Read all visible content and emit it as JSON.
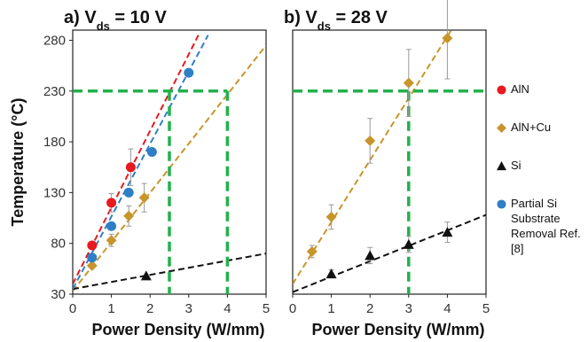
{
  "chart_data": [
    {
      "type": "scatter",
      "title_prefix": "a) V",
      "title_sub": "ds",
      "title_suffix": " = 10 V",
      "xlabel": "Power Density (W/mm)",
      "ylabel": "Temperature (°C)",
      "xlim": [
        0,
        5
      ],
      "ylim": [
        30,
        290
      ],
      "xticks": [
        0,
        1,
        2,
        3,
        4,
        5
      ],
      "yticks": [
        30,
        80,
        130,
        180,
        230,
        280
      ],
      "series": [
        {
          "name": "AlN",
          "marker": "circle",
          "color": "#e8191f",
          "x": [
            0.5,
            1.0,
            1.5
          ],
          "y": [
            78,
            120,
            155
          ],
          "err": [
            0,
            9,
            18
          ],
          "fit": {
            "x": [
              0,
              3.25
            ],
            "y": [
              40,
              285
            ]
          }
        },
        {
          "name": "AlN+Cu",
          "marker": "diamond",
          "color": "#c8952b",
          "x": [
            0.5,
            1.0,
            1.45,
            1.85
          ],
          "y": [
            58,
            83,
            107,
            125
          ],
          "err": [
            0,
            6,
            10,
            14
          ],
          "fit": {
            "x": [
              0,
              5
            ],
            "y": [
              33,
              275
            ]
          }
        },
        {
          "name": "Si",
          "marker": "triangle",
          "color": "#111111",
          "x": [
            1.9
          ],
          "y": [
            48
          ],
          "err": [
            0
          ],
          "fit": {
            "x": [
              0,
              5
            ],
            "y": [
              35,
              70
            ]
          }
        },
        {
          "name": "Partial Si Substrate Removal Ref. [8]",
          "marker": "circle",
          "color": "#2f7fc6",
          "x": [
            0.5,
            1.0,
            1.45,
            2.05,
            3.0
          ],
          "y": [
            66,
            97,
            130,
            170,
            248
          ],
          "err": [
            0,
            0,
            0,
            0,
            0
          ],
          "fit": {
            "x": [
              0,
              3.5
            ],
            "y": [
              35,
              285
            ]
          }
        }
      ],
      "guides": {
        "y": 230,
        "x": [
          2.5,
          4.0
        ]
      }
    },
    {
      "type": "scatter",
      "title_prefix": "b) V",
      "title_sub": "ds",
      "title_suffix": " = 28 V",
      "xlabel": "Power Density (W/mm)",
      "xlim": [
        0,
        5
      ],
      "ylim": [
        30,
        290
      ],
      "xticks": [
        0,
        1,
        2,
        3,
        4,
        5
      ],
      "series": [
        {
          "name": "AlN+Cu",
          "marker": "diamond",
          "color": "#c8952b",
          "x": [
            0.5,
            1.0,
            2.0,
            3.0,
            4.0
          ],
          "y": [
            72,
            106,
            181,
            238,
            282
          ],
          "err": [
            6,
            12,
            22,
            33,
            40
          ],
          "fit": {
            "x": [
              0,
              4.1
            ],
            "y": [
              40,
              290
            ]
          }
        },
        {
          "name": "Si",
          "marker": "triangle",
          "color": "#111111",
          "x": [
            1.0,
            2.0,
            3.0,
            4.0
          ],
          "y": [
            50,
            68,
            79,
            91
          ],
          "err": [
            4,
            8,
            8,
            10
          ],
          "fit": {
            "x": [
              0,
              5
            ],
            "y": [
              32,
              108
            ]
          }
        }
      ],
      "guides": {
        "y": 230,
        "x": [
          3.0
        ]
      }
    }
  ],
  "legend": {
    "items": [
      {
        "label": "AlN",
        "marker": "circle",
        "color": "#e8191f"
      },
      {
        "label": "AlN+Cu",
        "marker": "diamond",
        "color": "#c8952b"
      },
      {
        "label": "Si",
        "marker": "triangle",
        "color": "#111111"
      },
      {
        "label": "Partial Si Substrate Removal Ref. [8]",
        "marker": "circle",
        "color": "#2f7fc6"
      }
    ]
  },
  "guide_color": "#22b14c"
}
